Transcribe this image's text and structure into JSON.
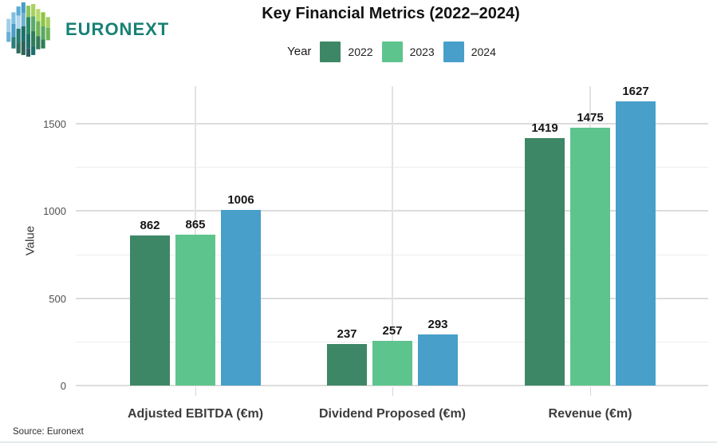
{
  "header": {
    "brand": "EURONEXT",
    "brand_color": "#178174",
    "title": "Key Financial Metrics (2022–2024)"
  },
  "legend": {
    "title": "Year"
  },
  "source_note": "Source: Euronext",
  "chart_data": {
    "type": "bar",
    "title": "Key Financial Metrics (2022–2024)",
    "categories": [
      "Adjusted EBITDA (€m)",
      "Dividend Proposed (€m)",
      "Revenue (€m)"
    ],
    "series": [
      {
        "name": "2022",
        "color": "#3e8766",
        "values": [
          862,
          237,
          1419
        ]
      },
      {
        "name": "2023",
        "color": "#5dc48d",
        "values": [
          865,
          257,
          1475
        ]
      },
      {
        "name": "2024",
        "color": "#479fca",
        "values": [
          1006,
          293,
          1627
        ]
      }
    ],
    "xlabel": "",
    "ylabel": "Value",
    "ylim": [
      0,
      1715
    ],
    "yticks": [
      0,
      500,
      1000,
      1500
    ],
    "yminor": [
      250,
      750,
      1250
    ],
    "grid": true,
    "legend_position": "top",
    "bar_labels": true
  }
}
